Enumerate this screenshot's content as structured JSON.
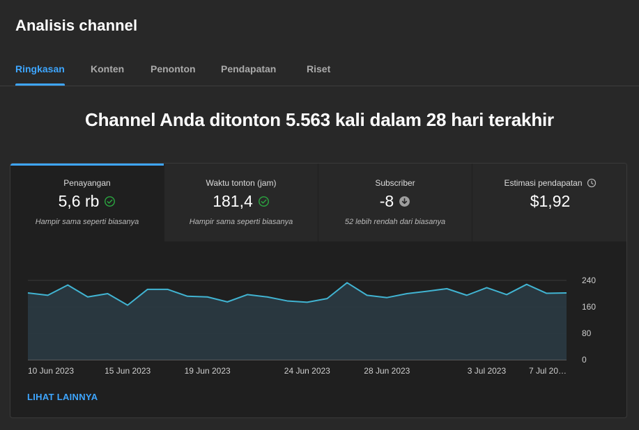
{
  "header": {
    "title": "Analisis channel"
  },
  "tabs": [
    {
      "label": "Ringkasan",
      "active": true
    },
    {
      "label": "Konten",
      "active": false
    },
    {
      "label": "Penonton",
      "active": false
    },
    {
      "label": "Pendapatan",
      "active": false
    },
    {
      "label": "Riset",
      "active": false
    }
  ],
  "headline": "Channel Anda ditonton 5.563 kali dalam 28 hari terakhir",
  "metrics": [
    {
      "label": "Penayangan",
      "value": "5,6 rb",
      "status_icon": "check-circle-icon",
      "note": "Hampir sama seperti biasanya"
    },
    {
      "label": "Waktu tonton (jam)",
      "value": "181,4",
      "status_icon": "check-circle-icon",
      "note": "Hampir sama seperti biasanya"
    },
    {
      "label": "Subscriber",
      "value": "-8",
      "status_icon": "arrow-down-circle-icon",
      "note": "52 lebih rendah dari biasanya"
    },
    {
      "label": "Estimasi pendapatan",
      "value": "$1,92",
      "label_icon": "clock-icon",
      "note": ""
    }
  ],
  "colors": {
    "accent": "#3ea6ff",
    "positive": "#2ba640",
    "line": "#41b4d2",
    "area": "#2a3a42"
  },
  "chart_data": {
    "type": "area",
    "series": [
      {
        "values": [
          202,
          195,
          226,
          190,
          200,
          165,
          213,
          213,
          192,
          190,
          175,
          197,
          190,
          178,
          174,
          185,
          233,
          195,
          188,
          200,
          207,
          215,
          195,
          218,
          197,
          228,
          201,
          202
        ]
      }
    ],
    "x_ticks": [
      {
        "index": 0,
        "label": "10 Jun 2023"
      },
      {
        "index": 5,
        "label": "15 Jun 2023"
      },
      {
        "index": 9,
        "label": "19 Jun 2023"
      },
      {
        "index": 14,
        "label": "24 Jun 2023"
      },
      {
        "index": 18,
        "label": "28 Jun 2023"
      },
      {
        "index": 23,
        "label": "3 Jul 2023"
      },
      {
        "index": 27,
        "label": "7 Jul 20…"
      }
    ],
    "y_ticks": [
      0,
      80,
      160,
      240
    ],
    "ylim": [
      0,
      240
    ],
    "grid": true
  },
  "footer_link": "LIHAT LAINNYA"
}
